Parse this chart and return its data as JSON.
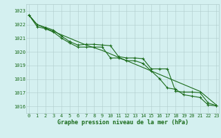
{
  "title": "Graphe pression niveau de la mer (hPa)",
  "x_values": [
    0,
    1,
    2,
    3,
    4,
    5,
    6,
    7,
    8,
    9,
    10,
    11,
    12,
    13,
    14,
    15,
    16,
    17,
    18,
    19,
    20,
    21,
    22,
    23
  ],
  "x_labels": [
    "0",
    "1",
    "2",
    "3",
    "4",
    "5",
    "6",
    "7",
    "8",
    "9",
    "10",
    "11",
    "12",
    "13",
    "14",
    "15",
    "16",
    "17",
    "18",
    "19",
    "20",
    "21",
    "22",
    "23"
  ],
  "line_smooth": [
    1022.7,
    1022.0,
    1021.75,
    1021.5,
    1021.25,
    1021.0,
    1020.75,
    1020.5,
    1020.3,
    1020.1,
    1019.85,
    1019.6,
    1019.35,
    1019.1,
    1018.85,
    1018.6,
    1018.35,
    1018.1,
    1017.85,
    1017.6,
    1017.35,
    1017.1,
    1016.6,
    1016.1
  ],
  "line_upper": [
    1022.7,
    1022.0,
    1021.8,
    1021.6,
    1021.15,
    1020.75,
    1020.5,
    1020.55,
    1020.55,
    1020.5,
    1020.45,
    1019.65,
    1019.55,
    1019.55,
    1019.5,
    1018.75,
    1018.75,
    1018.75,
    1017.1,
    1017.05,
    1017.05,
    1017.0,
    1016.25,
    1016.05
  ],
  "line_lower": [
    1022.7,
    1021.85,
    1021.7,
    1021.45,
    1021.0,
    1020.65,
    1020.35,
    1020.35,
    1020.35,
    1020.35,
    1019.55,
    1019.55,
    1019.35,
    1019.35,
    1019.15,
    1018.6,
    1018.05,
    1017.35,
    1017.25,
    1016.85,
    1016.75,
    1016.65,
    1016.1,
    1016.05
  ],
  "ylim_min": 1015.5,
  "ylim_max": 1023.5,
  "yticks": [
    1016,
    1017,
    1018,
    1019,
    1020,
    1021,
    1022,
    1023
  ],
  "line_color": "#1a6b1a",
  "bg_color": "#d4f0f0",
  "grid_color": "#b0cccc",
  "marker": "+",
  "marker_size": 3.5,
  "line_width": 0.8,
  "title_fontsize": 6.0,
  "tick_fontsize": 5.0
}
